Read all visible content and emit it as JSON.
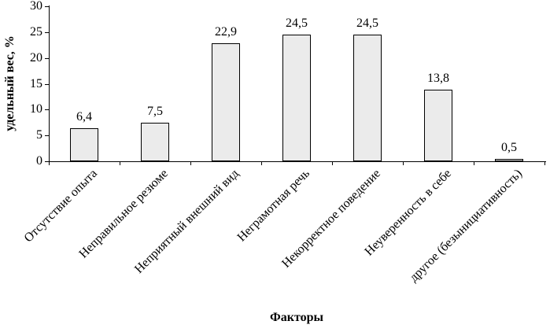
{
  "chart_data": {
    "type": "bar",
    "title": "",
    "xlabel": "Факторы",
    "ylabel": "удельный вес, %",
    "categories": [
      "Отсутствие опыта",
      "Неправильное резюме",
      "Неприятный внешний вид",
      "Неграмотная речь",
      "Некорректное поведение",
      "Неуверенность в себе",
      "другое (безынициативность)"
    ],
    "values": [
      6.4,
      7.5,
      22.9,
      24.5,
      24.5,
      13.8,
      0.5
    ],
    "value_labels": [
      "6,4",
      "7,5",
      "22,9",
      "24,5",
      "24,5",
      "13,8",
      "0,5"
    ],
    "ylim": [
      0,
      30
    ],
    "yticks": [
      0,
      5,
      10,
      15,
      20,
      25,
      30
    ],
    "grid": false,
    "legend": "none",
    "bar_fill": "#ebebeb",
    "bar_border": "#000000",
    "axis_color": "#000000"
  }
}
